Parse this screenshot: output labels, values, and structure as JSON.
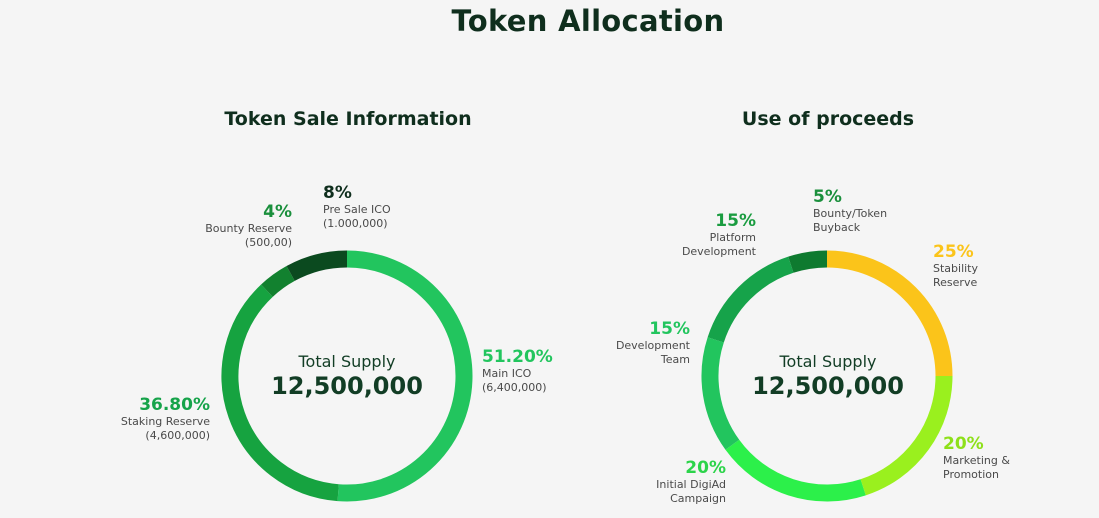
{
  "page": {
    "title": "Token Allocation"
  },
  "chart_data": [
    {
      "type": "pie",
      "title": "Token Sale Information",
      "center": {
        "label": "Total Supply",
        "value": "12,500,000"
      },
      "slices": [
        {
          "pct": "51.20%",
          "value": 51.2,
          "name": "Main ICO",
          "amount": "(6,400,000)",
          "color": "#22c55e"
        },
        {
          "pct": "36.80%",
          "value": 36.8,
          "name": "Staking Reserve",
          "amount": "(4,600,000)",
          "color": "#16a340"
        },
        {
          "pct": "4%",
          "value": 4,
          "name": "Bounty Reserve",
          "amount": "(500,00)",
          "color": "#12812f"
        },
        {
          "pct": "8%",
          "value": 8,
          "name": "Pre Sale ICO",
          "amount": "(1.000,000)",
          "color": "#0b4a1f"
        }
      ]
    },
    {
      "type": "pie",
      "title": "Use of proceeds",
      "center": {
        "label": "Total Supply",
        "value": "12,500,000"
      },
      "slices": [
        {
          "pct": "25%",
          "value": 25,
          "name": "Stability Reserve",
          "color": "#fbc41a"
        },
        {
          "pct": "20%",
          "value": 20,
          "name": "Marketing & Promotion",
          "color": "#9af01e"
        },
        {
          "pct": "20%",
          "value": 20,
          "name": "Initial DigiAd Campaign",
          "color": "#2cf04a"
        },
        {
          "pct": "15%",
          "value": 15,
          "name": "Development Team",
          "color": "#22c55e"
        },
        {
          "pct": "15%",
          "value": 15,
          "name": "Platform Development",
          "color": "#16a34a"
        },
        {
          "pct": "5%",
          "value": 5,
          "name": "Bounty/Token Buyback",
          "color": "#0e7a2f"
        }
      ]
    }
  ]
}
